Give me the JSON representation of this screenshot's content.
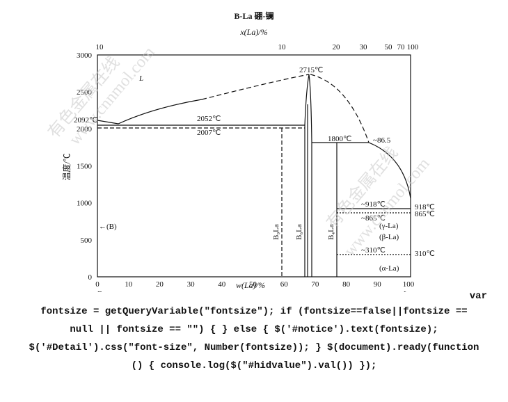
{
  "title": "B-La  硼-镧",
  "top_axis": {
    "label": "x(La)/%",
    "ticks": [
      "10",
      "10",
      "20",
      "30",
      "50",
      "70",
      "100"
    ]
  },
  "bottom_axis": {
    "label": "w(La)/%",
    "ticks": [
      "0",
      "10",
      "20",
      "30",
      "40",
      "50",
      "60",
      "70",
      "80",
      "90",
      "100"
    ],
    "end_labels": [
      "B",
      "La"
    ]
  },
  "left_axis": {
    "label": "温度/℃",
    "ticks": [
      "0",
      "500",
      "1000",
      "1500",
      "2000",
      "2500",
      "3000"
    ]
  },
  "annotations": [
    "L",
    "2092℃",
    "2052℃",
    "2007℃",
    "2715℃",
    "1800℃",
    "~86.5",
    "~918℃",
    "918℃",
    "~865℃",
    "865℃",
    "(γ-La)",
    "(β-La)",
    "~310℃",
    "310℃",
    "(α-La)",
    "←(B)"
  ],
  "phases": [
    "B₉La",
    "B₆La",
    "B₄La"
  ],
  "watermarks": [
    "有色金属在线",
    "www.cnnmol.com",
    "有色金属在线",
    "www.cnnmol.com"
  ],
  "code": [
    "var",
    "fontsize = getQueryVariable(\"fontsize\"); if (fontsize==false||fontsize ==",
    "null || fontsize == \"\") { } else { $('#notice').text(fontsize);",
    "$('#Detail').css(\"font-size\", Number(fontsize)); } $(document).ready(function",
    "() { console.log($(\"#hidvalue\").val()) });"
  ]
}
